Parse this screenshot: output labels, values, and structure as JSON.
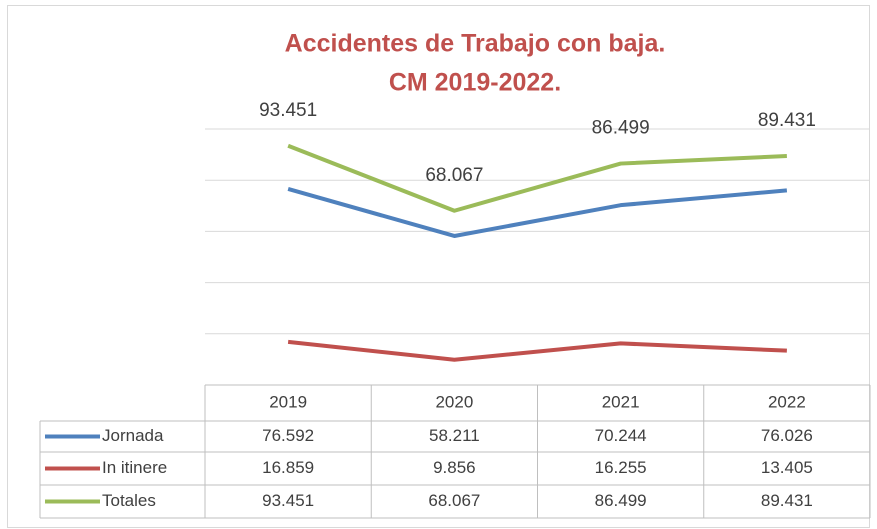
{
  "chart_data": {
    "type": "line",
    "title": [
      "Accidentes de Trabajo con baja.",
      "CM 2019-2022."
    ],
    "categories": [
      "2019",
      "2020",
      "2021",
      "2022"
    ],
    "series": [
      {
        "name": "Jornada",
        "color": "#4f81bd",
        "values": [
          76592,
          58211,
          70244,
          76026
        ],
        "value_labels": [
          "76.592",
          "58.211",
          "70.244",
          "76.026"
        ]
      },
      {
        "name": "In itinere",
        "color": "#c0504d",
        "values": [
          16859,
          9856,
          16255,
          13405
        ],
        "value_labels": [
          "16.859",
          "9.856",
          "16.255",
          "13.405"
        ]
      },
      {
        "name": "Totales",
        "color": "#9bbb59",
        "values": [
          93451,
          68067,
          86499,
          89431
        ],
        "value_labels": [
          "93.451",
          "68.067",
          "86.499",
          "89.431"
        ]
      }
    ],
    "ylim": [
      0,
      100000
    ],
    "yticks": [
      0,
      20000,
      40000,
      60000,
      80000,
      100000
    ],
    "grid": true
  }
}
